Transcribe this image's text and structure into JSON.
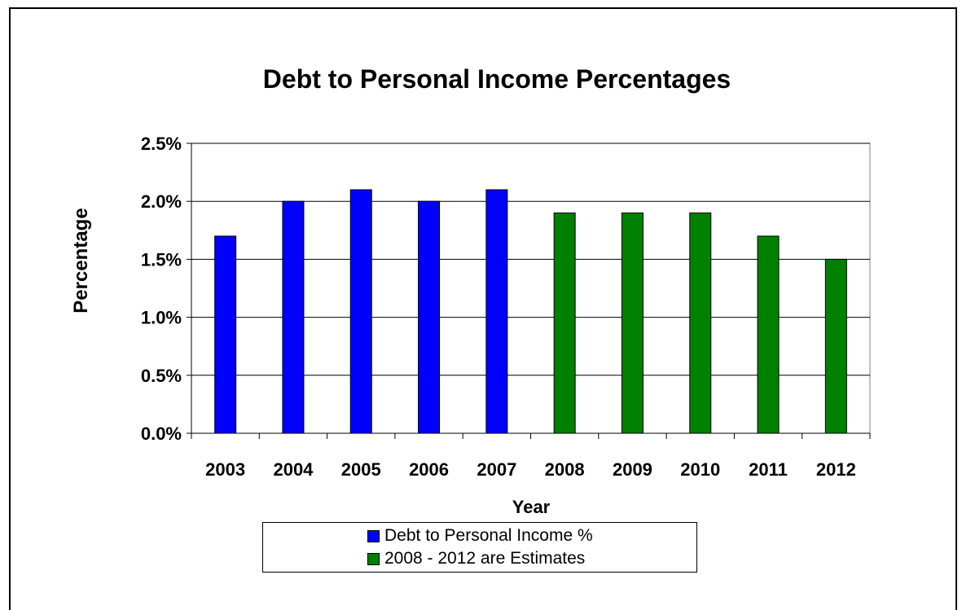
{
  "colors": {
    "actual": "#0000FF",
    "estimate": "#008000",
    "grid": "#000000",
    "plot_bg": "#FFFFFF"
  },
  "legend": {
    "items": [
      {
        "label": "Debt to Personal Income %",
        "color": "#0000FF"
      },
      {
        "label": "2008 - 2012 are Estimates",
        "color": "#008000"
      }
    ]
  },
  "chart_data": {
    "type": "bar",
    "title": "Debt to Personal Income Percentages",
    "xlabel": "Year",
    "ylabel": "Percentage",
    "categories": [
      "2003",
      "2004",
      "2005",
      "2006",
      "2007",
      "2008",
      "2009",
      "2010",
      "2011",
      "2012"
    ],
    "series": [
      {
        "name": "Debt to Personal Income %",
        "color": "#0000FF",
        "values": [
          1.7,
          2.0,
          2.1,
          2.0,
          2.1,
          null,
          null,
          null,
          null,
          null
        ]
      },
      {
        "name": "2008 - 2012 are Estimates",
        "color": "#008000",
        "values": [
          null,
          null,
          null,
          null,
          null,
          1.9,
          1.9,
          1.9,
          1.7,
          1.5
        ]
      }
    ],
    "ylim": [
      0,
      2.5
    ],
    "yticks": [
      0,
      0.5,
      1.0,
      1.5,
      2.0,
      2.5
    ],
    "ytick_labels": [
      "0.0%",
      "0.5%",
      "1.0%",
      "1.5%",
      "2.0%",
      "2.5%"
    ],
    "grid": true,
    "legend_position": "bottom"
  }
}
